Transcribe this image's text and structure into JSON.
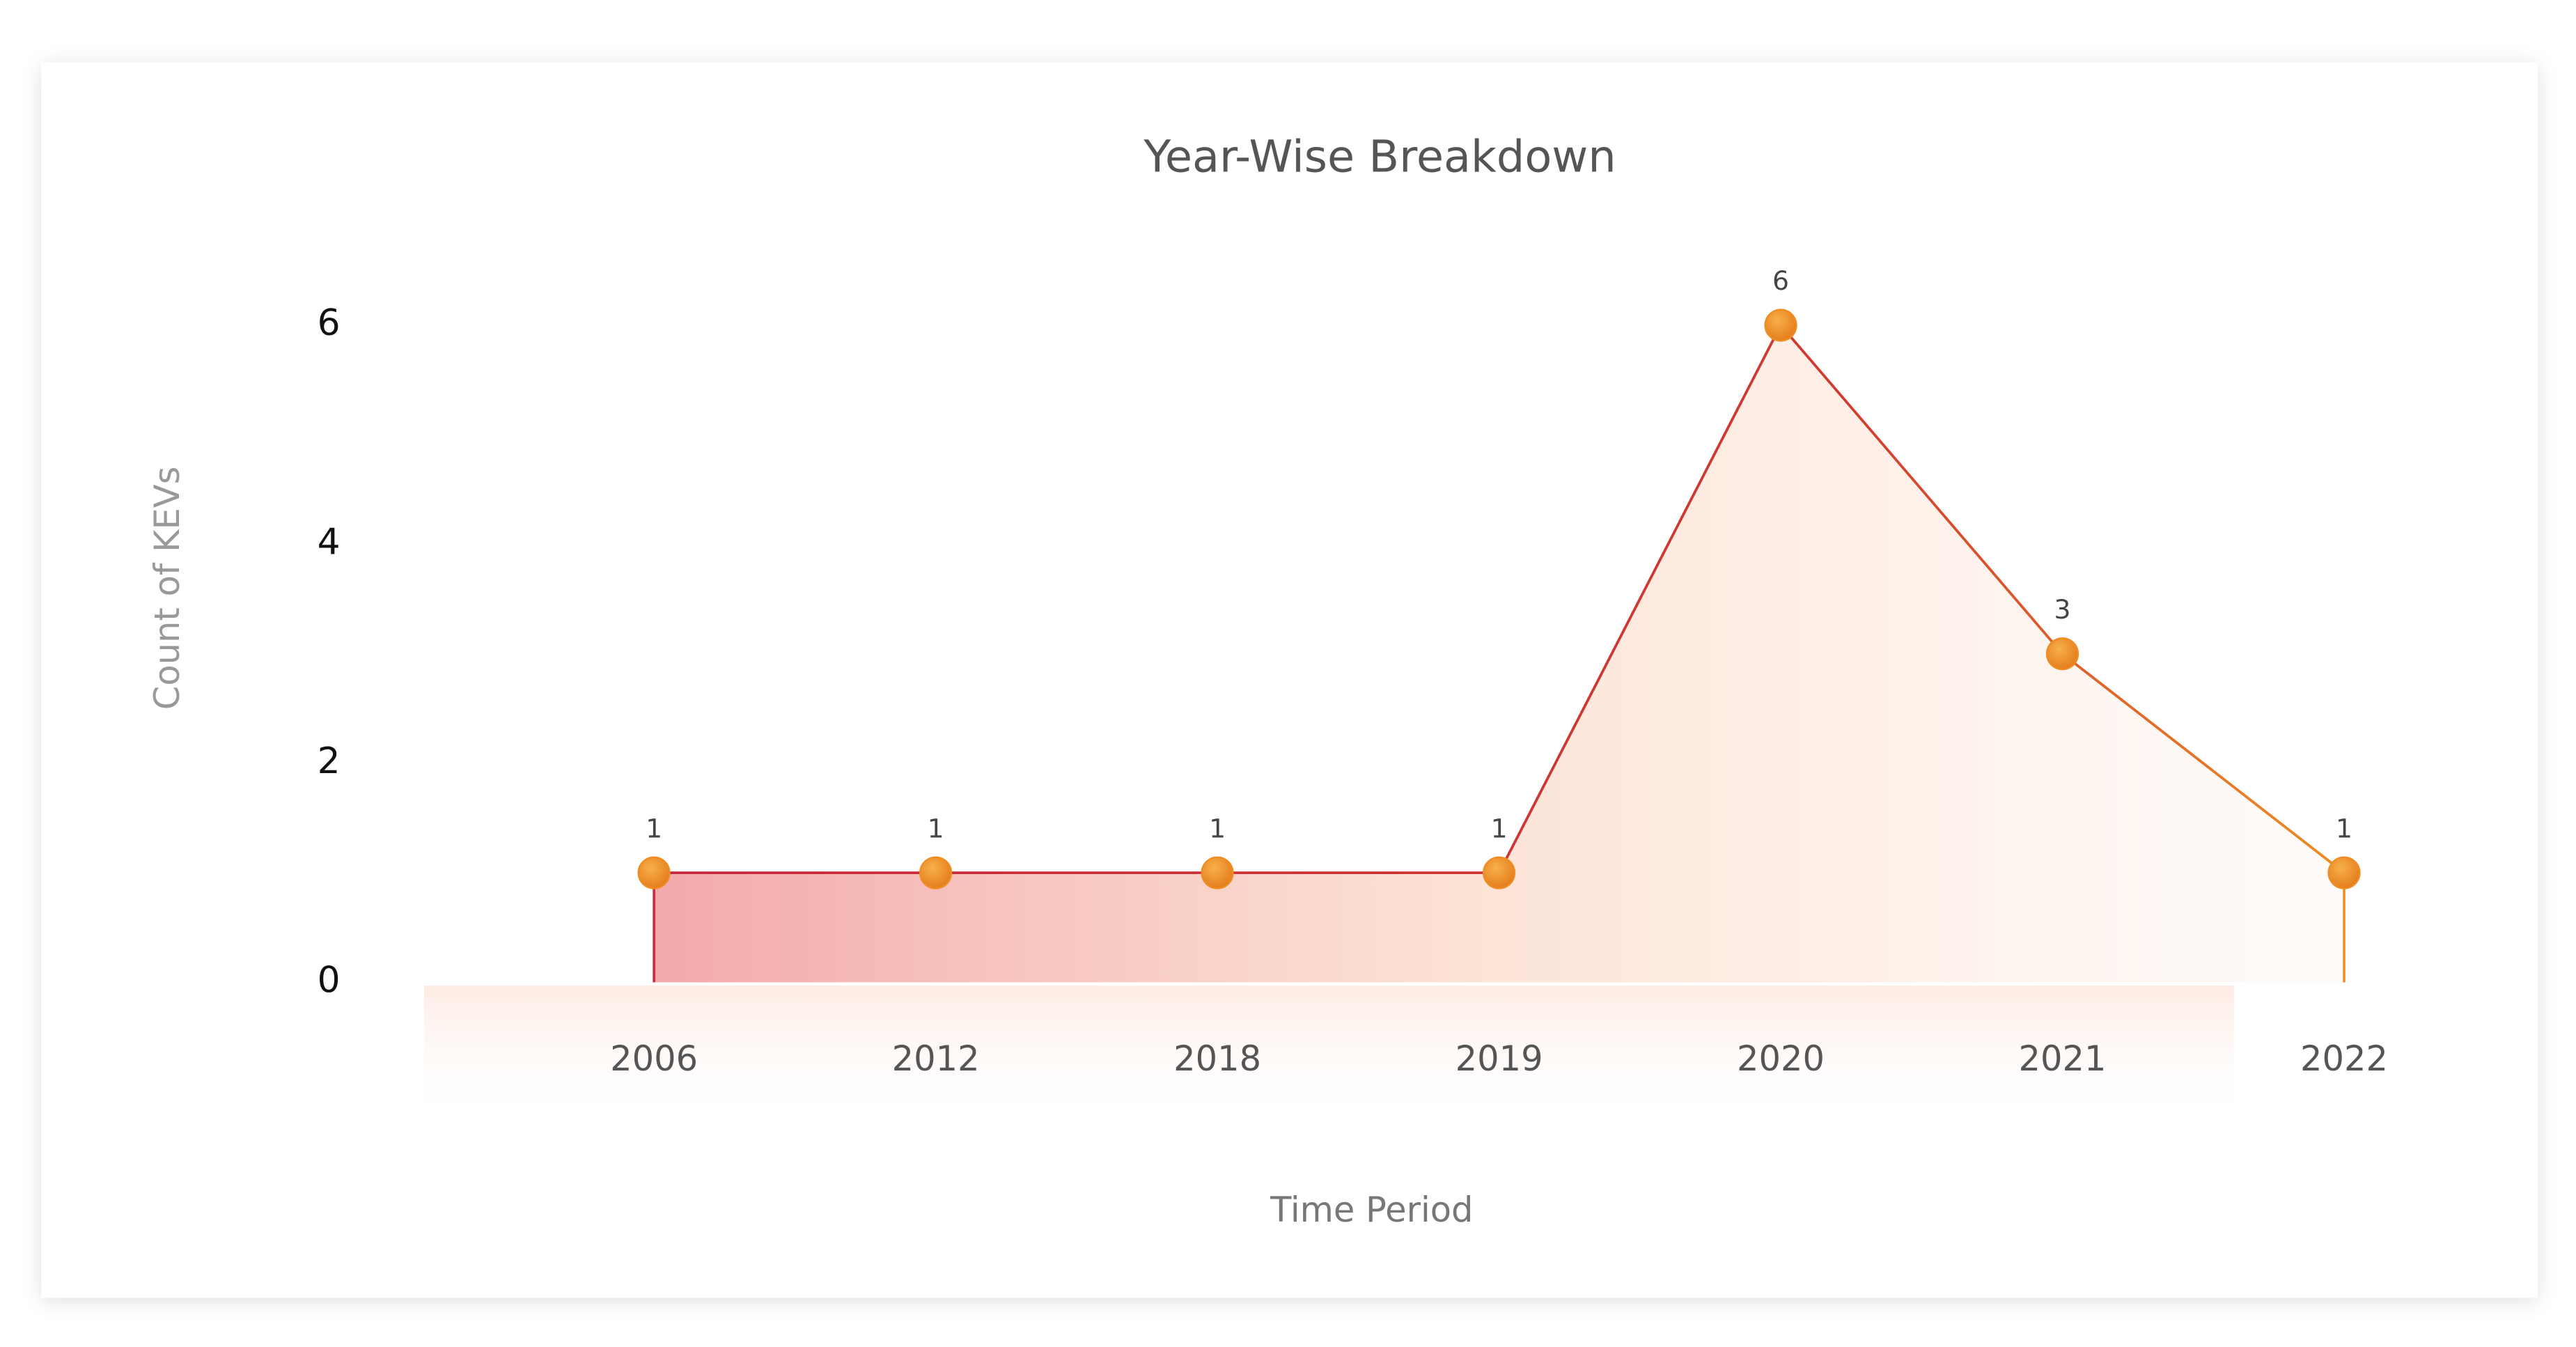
{
  "chart_data": {
    "type": "line",
    "title": "Year-Wise Breakdown",
    "xlabel": "Time Period",
    "ylabel": "Count of KEVs",
    "categories": [
      "2006",
      "2012",
      "2018",
      "2019",
      "2020",
      "2021",
      "2022"
    ],
    "values": [
      1,
      1,
      1,
      1,
      6,
      3,
      1
    ],
    "line_color": "#c8283c",
    "marker_color": "#ef8c22",
    "ylim": [
      0,
      6
    ],
    "yticks": [
      0,
      2,
      4,
      6
    ],
    "grid": true
  }
}
